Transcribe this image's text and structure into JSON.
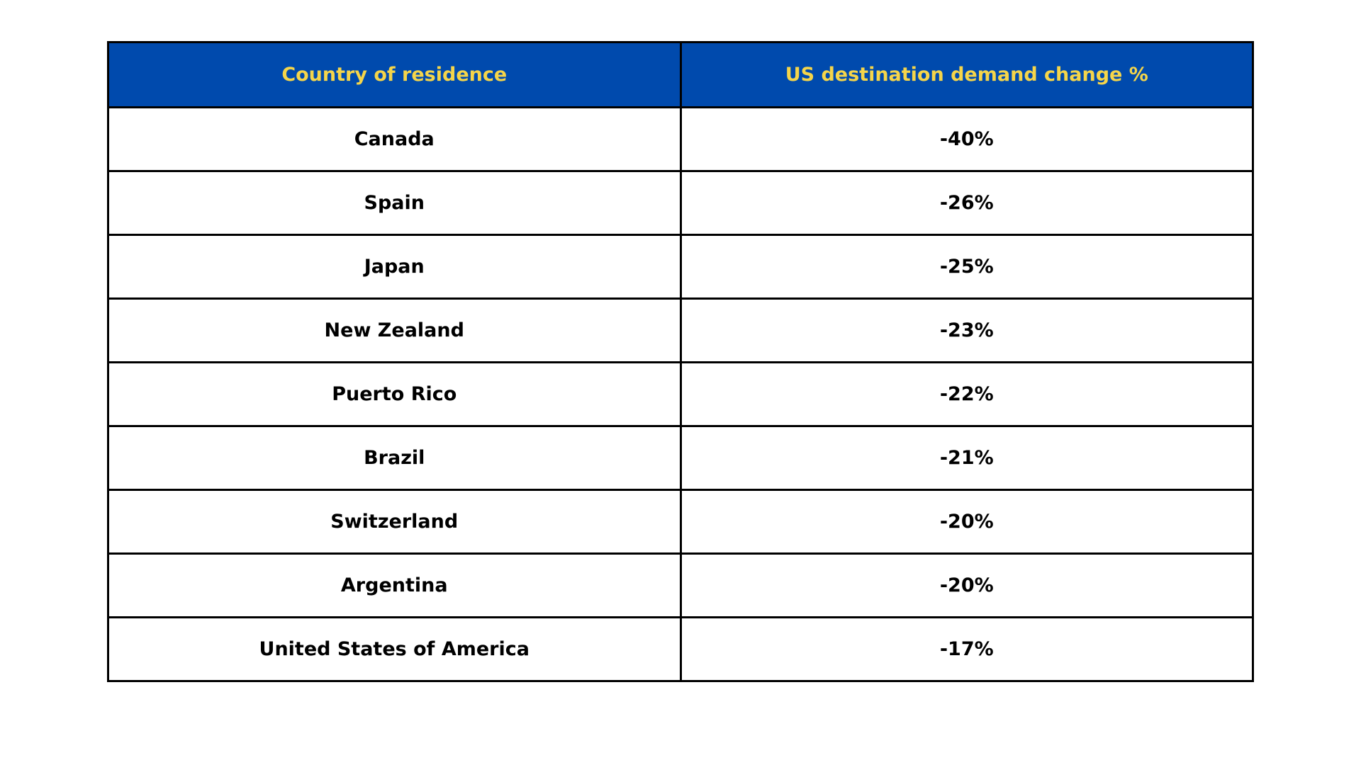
{
  "table": {
    "header": [
      "Country of residence",
      "US destination demand change %"
    ],
    "rows": [
      [
        "Canada",
        "-40%"
      ],
      [
        "Spain",
        "-26%"
      ],
      [
        "Japan",
        "-25%"
      ],
      [
        "New Zealand",
        "-23%"
      ],
      [
        "Puerto Rico",
        "-22%"
      ],
      [
        "Brazil",
        "-21%"
      ],
      [
        "Switzerland",
        "-20%"
      ],
      [
        "Argentina",
        "-20%"
      ],
      [
        "United States of America",
        "-17%"
      ]
    ]
  }
}
